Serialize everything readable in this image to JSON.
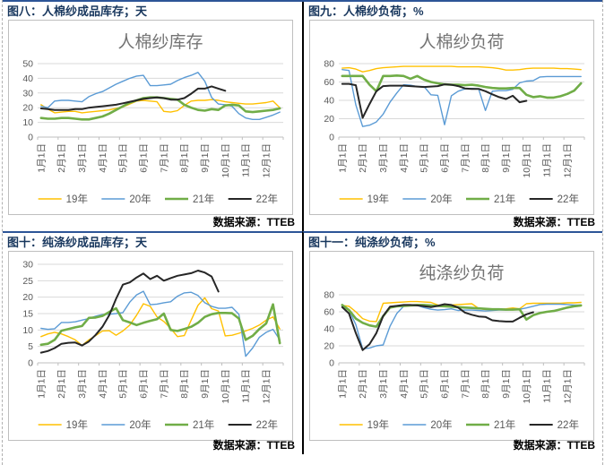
{
  "page": {
    "accent_blue_border": "#2d5597",
    "black_border": "#000000",
    "header_text_color": "#17365d"
  },
  "chart_data": [
    {
      "type": "line",
      "panel_header": "图八：人棉纱成品库存；天",
      "title": "人棉纱库存",
      "source": "数据来源：TTEB",
      "x_tick_labels": [
        "1月1日",
        "2月1日",
        "3月1日",
        "4月1日",
        "5月1日",
        "6月1日",
        "7月1日",
        "8月1日",
        "9月1日",
        "10月1日",
        "11月1日",
        "12月1日"
      ],
      "points_per_month": 3,
      "ylim": [
        0,
        50
      ],
      "ytick_step": 10,
      "grid": true,
      "legend_position": "bottom",
      "series": [
        {
          "name": "19年",
          "color": "#FFC000",
          "width": 1.4,
          "values": [
            22,
            19,
            16.5,
            17,
            17.5,
            17.5,
            16.5,
            17,
            17.5,
            18,
            18.5,
            19.5,
            20.5,
            22.5,
            24.5,
            25,
            24.5,
            24,
            17.5,
            17,
            18,
            21.5,
            24.5,
            25,
            25,
            25.5,
            25,
            24,
            23.5,
            23,
            22.5,
            22.5,
            23,
            23.5,
            24.5,
            20
          ]
        },
        {
          "name": "20年",
          "color": "#5B9BD5",
          "width": 1.4,
          "values": [
            21,
            20,
            24.5,
            25,
            25,
            24.5,
            24,
            27.5,
            29.5,
            31,
            33.5,
            36,
            38,
            40,
            41.5,
            42,
            35,
            35,
            35.5,
            36,
            38.5,
            40.5,
            42,
            44,
            38,
            27,
            22.5,
            22,
            21,
            16,
            13,
            12,
            12,
            13.5,
            15,
            17
          ]
        },
        {
          "name": "21年",
          "color": "#70AD47",
          "width": 2.6,
          "values": [
            13,
            12.5,
            12.5,
            13,
            13,
            12.5,
            12,
            12,
            13,
            14,
            16,
            18.5,
            21,
            23.5,
            25,
            26.5,
            27,
            27,
            26.5,
            26,
            25.5,
            22,
            20,
            18.5,
            18,
            19,
            18.5,
            21.5,
            22,
            21.5,
            17.5,
            17,
            17.5,
            18,
            18.5,
            19.5
          ]
        },
        {
          "name": "22年",
          "color": "#262626",
          "width": 2,
          "values": [
            19.5,
            19,
            18.5,
            18.5,
            18.5,
            19,
            19,
            20,
            20.5,
            21,
            21.5,
            22,
            23,
            24,
            25,
            26,
            26.5,
            27,
            26.5,
            25.5,
            25.5,
            26.5,
            29.5,
            33,
            33,
            34.5,
            33,
            31.5
          ]
        }
      ]
    },
    {
      "type": "line",
      "panel_header": "图九：人棉纱负荷；%",
      "title": "人棉纱负荷",
      "source": "数据来源：TTEB",
      "x_tick_labels": [
        "1月1日",
        "2月1日",
        "3月1日",
        "4月1日",
        "5月1日",
        "6月1日",
        "7月1日",
        "8月1日",
        "9月1日",
        "10月1日",
        "11月1日",
        "12月1日"
      ],
      "points_per_month": 3,
      "ylim": [
        0,
        80
      ],
      "ytick_step": 20,
      "grid": true,
      "legend_position": "bottom",
      "series": [
        {
          "name": "19年",
          "color": "#FFC000",
          "width": 1.4,
          "values": [
            75,
            75.5,
            74,
            71,
            72.5,
            74.5,
            75.5,
            76,
            76.5,
            77,
            77,
            77,
            77,
            77,
            77,
            77,
            77,
            76.5,
            76.5,
            76.5,
            76.5,
            76,
            75.5,
            74.5,
            73,
            73,
            73.5,
            74.5,
            75,
            75,
            75,
            75,
            74.5,
            74.5,
            74,
            73.5
          ]
        },
        {
          "name": "20年",
          "color": "#5B9BD5",
          "width": 1.4,
          "values": [
            73.5,
            72.5,
            35,
            11.5,
            13,
            16.5,
            25,
            38,
            48,
            57,
            56.5,
            55,
            55,
            46,
            45.5,
            13.5,
            45,
            50,
            52.5,
            53,
            52.5,
            29,
            50,
            50.5,
            50.5,
            52,
            59,
            61,
            61.5,
            65.5,
            66,
            66,
            66,
            66,
            66,
            66
          ]
        },
        {
          "name": "21年",
          "color": "#70AD47",
          "width": 2.6,
          "values": [
            66.5,
            66.5,
            66.5,
            66.5,
            57,
            50,
            66.5,
            66.5,
            67,
            66.5,
            63.5,
            66.5,
            62.5,
            60,
            58.5,
            57.5,
            57,
            57,
            56.5,
            57,
            56,
            54.5,
            53.5,
            53,
            53,
            53.5,
            53.5,
            46,
            43.5,
            44.5,
            43,
            43,
            44.5,
            47,
            50.5,
            58.5
          ]
        },
        {
          "name": "22年",
          "color": "#262626",
          "width": 2,
          "values": [
            58,
            58,
            56.5,
            21,
            36,
            50,
            55.5,
            56,
            56,
            56,
            55.5,
            55,
            54.5,
            55,
            55.5,
            57.5,
            57,
            55.5,
            53,
            52.5,
            52.5,
            50,
            46.5,
            43.5,
            41.5,
            45,
            38,
            39.5
          ]
        }
      ]
    },
    {
      "type": "line",
      "panel_header": "图十：纯涤纱成品库存；天",
      "title": "",
      "source": "数据来源：TTEB",
      "x_tick_labels": [
        "1月1日",
        "2月1日",
        "3月1日",
        "4月1日",
        "5月1日",
        "6月1日",
        "7月1日",
        "8月1日",
        "9月1日",
        "10月1日",
        "11月1日",
        "12月1日"
      ],
      "points_per_month": 3,
      "ylim": [
        0,
        30
      ],
      "ytick_step": 5,
      "grid": true,
      "legend_position": "bottom",
      "series": [
        {
          "name": "19年",
          "color": "#FFC000",
          "width": 1.4,
          "values": [
            8,
            8.8,
            9.3,
            8.8,
            8,
            7,
            5.3,
            7,
            8.3,
            9.7,
            9.8,
            8.4,
            9.7,
            11.5,
            14.5,
            18,
            17.2,
            14,
            12.6,
            10.5,
            8,
            8.3,
            13,
            17.5,
            19.8,
            16.5,
            15.8,
            8.2,
            8.4,
            9,
            9.7,
            10.5,
            11.5,
            13,
            14,
            10.3
          ]
        },
        {
          "name": "20年",
          "color": "#5B9BD5",
          "width": 1.4,
          "values": [
            10.5,
            10.2,
            10.4,
            12.3,
            12.3,
            12.5,
            13,
            13.5,
            14.2,
            14.7,
            14.8,
            15,
            15.3,
            18.5,
            20.7,
            21.8,
            17.7,
            17.9,
            18.3,
            18.6,
            20.3,
            21.3,
            21.5,
            20.5,
            18.3,
            17.2,
            16.6,
            16.6,
            16.9,
            14.8,
            2,
            4.5,
            7.8,
            9.3,
            10.2,
            7
          ]
        },
        {
          "name": "21年",
          "color": "#70AD47",
          "width": 2.6,
          "values": [
            5.5,
            5.8,
            7,
            9.8,
            10.3,
            10.8,
            11.2,
            13.7,
            13.8,
            14.3,
            15.5,
            16.6,
            13,
            12.3,
            11.5,
            12.2,
            12.8,
            13.3,
            15,
            10,
            9.7,
            10.3,
            11,
            12.2,
            14,
            14.8,
            15.2,
            15.2,
            15.1,
            13.5,
            7,
            8.2,
            10.3,
            12,
            17.8,
            6
          ]
        },
        {
          "name": "22年",
          "color": "#262626",
          "width": 2,
          "values": [
            3.1,
            3.6,
            4.5,
            5.8,
            6.1,
            6.2,
            5.3,
            6.5,
            8.5,
            11,
            14.5,
            19.5,
            23.8,
            24.5,
            26,
            27.2,
            25.5,
            26.5,
            25,
            25.8,
            26.5,
            26.9,
            27.3,
            28.1,
            27.5,
            26.3,
            21.7
          ]
        }
      ]
    },
    {
      "type": "line",
      "panel_header": "图十一：纯涤纱负荷；%",
      "title": "纯涤纱负荷",
      "source": "数据来源：TTEB",
      "x_tick_labels": [
        "1月1日",
        "2月1日",
        "3月1日",
        "4月1日",
        "5月1日",
        "6月1日",
        "7月1日",
        "8月1日",
        "9月1日",
        "10月1日",
        "11月1日",
        "12月1日"
      ],
      "points_per_month": 3,
      "ylim": [
        0,
        80
      ],
      "ytick_step": 20,
      "grid": true,
      "legend_position": "bottom",
      "series": [
        {
          "name": "19年",
          "color": "#FFC000",
          "width": 1.4,
          "values": [
            67.5,
            66.5,
            60,
            52,
            49,
            48.5,
            70,
            70.5,
            71,
            71.5,
            72,
            72,
            71.5,
            71,
            68,
            67.5,
            68,
            68.5,
            69,
            69.5,
            64,
            62.5,
            62.5,
            63,
            63.5,
            64.5,
            63.5,
            69.5,
            70,
            70,
            70,
            70,
            70,
            70.5,
            70.5,
            71
          ]
        },
        {
          "name": "20年",
          "color": "#5B9BD5",
          "width": 1.4,
          "values": [
            67,
            62,
            45,
            16.5,
            17.5,
            20,
            21,
            43,
            58,
            66.5,
            68,
            67.5,
            65,
            63,
            62,
            62.5,
            63.5,
            61.5,
            62,
            62,
            61.5,
            61,
            61.5,
            62,
            62,
            62.5,
            63,
            64.5,
            66.5,
            68.5,
            69,
            69,
            69,
            68.5,
            68,
            68
          ]
        },
        {
          "name": "21年",
          "color": "#70AD47",
          "width": 2.6,
          "values": [
            68,
            62,
            52,
            47,
            44,
            42.5,
            55,
            65,
            66.5,
            67,
            67.5,
            68,
            68,
            67.5,
            67,
            66.5,
            66,
            65.5,
            65,
            64.5,
            64,
            63.5,
            63,
            63,
            62.5,
            62.5,
            63,
            51,
            56,
            58.5,
            60,
            61,
            63,
            65,
            66.5,
            67.5
          ]
        },
        {
          "name": "22年",
          "color": "#262626",
          "width": 2,
          "values": [
            65.5,
            58,
            35,
            15,
            22,
            35,
            55,
            66,
            67,
            68,
            68,
            67.5,
            66.5,
            65.5,
            67,
            69,
            68,
            65,
            59,
            56.5,
            54.5,
            54,
            50,
            49,
            48.5,
            48.5,
            53,
            57,
            59.5
          ]
        }
      ]
    }
  ]
}
